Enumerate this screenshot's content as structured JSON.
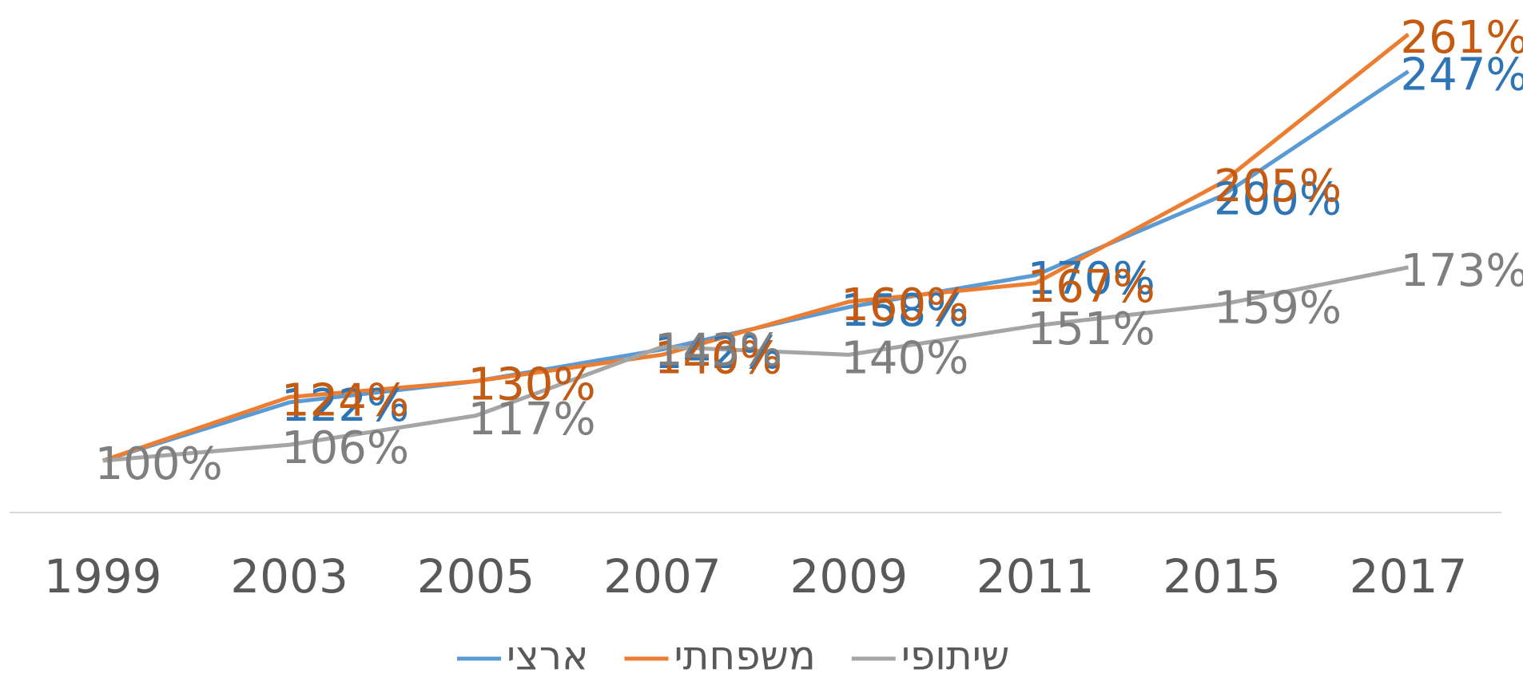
{
  "chart_data": {
    "type": "line",
    "categories": [
      "1999",
      "2003",
      "2005",
      "2007",
      "2009",
      "2011",
      "2015",
      "2017"
    ],
    "series": [
      {
        "name": "ארצי",
        "color": "#5b9bd5",
        "label_color": "#2e75b6",
        "values": [
          100,
          122,
          130,
          142,
          158,
          170,
          200,
          247
        ],
        "value_labels": [
          "",
          "122%",
          "130%",
          "142%",
          "158%",
          "170%",
          "200%",
          "247%"
        ]
      },
      {
        "name": "משפחתי",
        "color": "#ed7d31",
        "label_color": "#c55a11",
        "values": [
          100,
          124,
          130,
          140,
          160,
          167,
          205,
          261
        ],
        "value_labels": [
          "",
          "124%",
          "130%",
          "140%",
          "160%",
          "167%",
          "205%",
          "261%"
        ]
      },
      {
        "name": "שיתופי",
        "color": "#a5a5a5",
        "label_color": "#7f7f7f",
        "values": [
          100,
          106,
          117,
          143,
          140,
          151,
          159,
          173
        ],
        "value_labels": [
          "100%",
          "106%",
          "117%",
          "143%",
          "140%",
          "151%",
          "159%",
          "173%"
        ]
      }
    ],
    "legend": "bottom"
  }
}
